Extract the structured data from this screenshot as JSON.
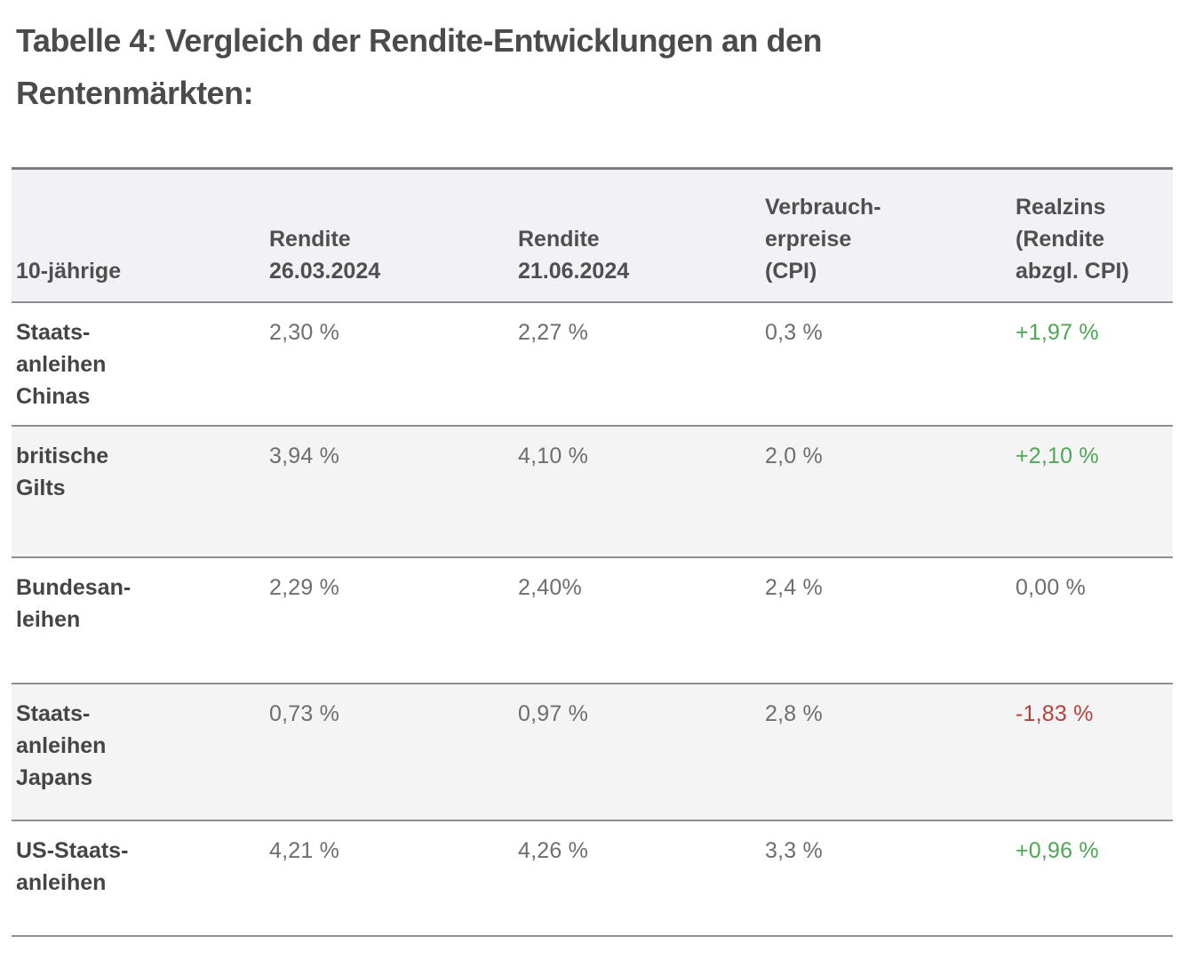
{
  "page": {
    "title": "Tabelle 4: Vergleich der Rendite-Entwicklungen an den\nRentenmärkten:"
  },
  "colors": {
    "positive": "#4FA654",
    "negative": "#B5413D",
    "neutral-value": "#6E6E6E"
  },
  "chart_data": {
    "type": "table",
    "title": "Tabelle 4: Vergleich der Rendite-Entwicklungen an den Rentenmärkten:",
    "headers": [
      "10-jährige",
      "Rendite\n26.03.2024",
      "Rendite\n21.06.2024",
      "Verbrauch-\nerpreise\n(CPI)",
      "Realzins\n(Rendite\nabzgl. CPI)"
    ],
    "rows": [
      {
        "label": "Staats-\nanleihen\nChinas",
        "rendite_26_03_2024": "2,30 %",
        "rendite_21_06_2024": "2,27 %",
        "cpi": "0,3 %",
        "realzins": "+1,97 %",
        "realzins_trend": "positive",
        "shaded": false
      },
      {
        "label": "britische\nGilts",
        "rendite_26_03_2024": "3,94 %",
        "rendite_21_06_2024": "4,10 %",
        "cpi": "2,0 %",
        "realzins": "+2,10 %",
        "realzins_trend": "positive",
        "shaded": true
      },
      {
        "label": "Bundesan-\nleihen",
        "rendite_26_03_2024": "2,29 %",
        "rendite_21_06_2024": "2,40%",
        "cpi": "2,4 %",
        "realzins": "0,00 %",
        "realzins_trend": "neutral",
        "shaded": false
      },
      {
        "label": "Staats-\nanleihen\nJapans",
        "rendite_26_03_2024": "0,73 %",
        "rendite_21_06_2024": "0,97 %",
        "cpi": "2,8 %",
        "realzins": "-1,83 %",
        "realzins_trend": "negative",
        "shaded": true
      },
      {
        "label": "US-Staats-\nanleihen",
        "rendite_26_03_2024": "4,21 %",
        "rendite_21_06_2024": "4,26 %",
        "cpi": "3,3 %",
        "realzins": "+0,96 %",
        "realzins_trend": "positive",
        "shaded": false
      }
    ]
  }
}
